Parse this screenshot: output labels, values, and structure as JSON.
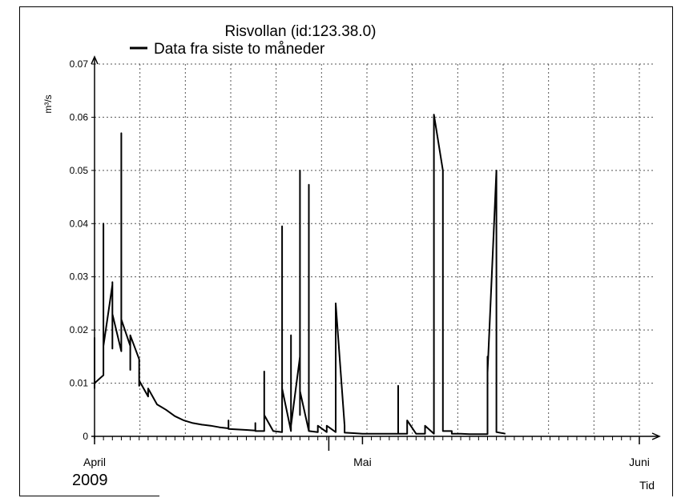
{
  "chart_data": {
    "type": "line",
    "title": "Risvollan (id:123.38.0)",
    "ylabel": "m³/s",
    "xlabel": "Tid",
    "year_label": "2009",
    "ylim": [
      0,
      0.07
    ],
    "y_ticks": [
      "0",
      "0.01",
      "0.02",
      "0.03",
      "0.04",
      "0.05",
      "0.06",
      "0.07"
    ],
    "x_range": [
      "2009-04-01",
      "2009-06-01"
    ],
    "month_ticks": [
      {
        "label": "April",
        "date": "2009-04-01"
      },
      {
        "label": "Mai",
        "date": "2009-05-01"
      },
      {
        "label": "Juni",
        "date": "2009-06-01"
      }
    ],
    "grid": true,
    "legend_position": "top-left",
    "series": [
      {
        "name": "Data fra siste to måneder",
        "color": "#000000",
        "points": [
          [
            "2009-04-01",
            0.009
          ],
          [
            "2009-04-01",
            0.0185
          ],
          [
            "2009-04-01",
            0.01
          ],
          [
            "2009-04-02",
            0.0115
          ],
          [
            "2009-04-02",
            0.028
          ],
          [
            "2009-04-02",
            0.04
          ],
          [
            "2009-04-02",
            0.0275
          ],
          [
            "2009-04-02",
            0.017
          ],
          [
            "2009-04-03",
            0.0285
          ],
          [
            "2009-04-03",
            0.029
          ],
          [
            "2009-04-03",
            0.0165
          ],
          [
            "2009-04-03",
            0.023
          ],
          [
            "2009-04-04",
            0.016
          ],
          [
            "2009-04-04",
            0.028
          ],
          [
            "2009-04-04",
            0.057
          ],
          [
            "2009-04-04",
            0.022
          ],
          [
            "2009-04-05",
            0.017
          ],
          [
            "2009-04-05",
            0.0125
          ],
          [
            "2009-04-05",
            0.019
          ],
          [
            "2009-04-06",
            0.0145
          ],
          [
            "2009-04-06",
            0.0095
          ],
          [
            "2009-04-06",
            0.0105
          ],
          [
            "2009-04-07",
            0.0075
          ],
          [
            "2009-04-07",
            0.009
          ],
          [
            "2009-04-08",
            0.006
          ],
          [
            "2009-04-09",
            0.005
          ],
          [
            "2009-04-10",
            0.0038
          ],
          [
            "2009-04-11",
            0.003
          ],
          [
            "2009-04-12",
            0.0025
          ],
          [
            "2009-04-13",
            0.0022
          ],
          [
            "2009-04-14",
            0.002
          ],
          [
            "2009-04-15",
            0.0017
          ],
          [
            "2009-04-16",
            0.0015
          ],
          [
            "2009-04-16",
            0.003
          ],
          [
            "2009-04-16",
            0.0014
          ],
          [
            "2009-04-18",
            0.0012
          ],
          [
            "2009-04-19",
            0.0011
          ],
          [
            "2009-04-19",
            0.0025
          ],
          [
            "2009-04-19",
            0.001
          ],
          [
            "2009-04-20",
            0.001
          ],
          [
            "2009-04-20",
            0.0122
          ],
          [
            "2009-04-20",
            0.004
          ],
          [
            "2009-04-21",
            0.001
          ],
          [
            "2009-04-22",
            0.0008
          ],
          [
            "2009-04-22",
            0.0395
          ],
          [
            "2009-04-22",
            0.009
          ],
          [
            "2009-04-23",
            0.001
          ],
          [
            "2009-04-23",
            0.019
          ],
          [
            "2009-04-23",
            0.0175
          ],
          [
            "2009-04-23",
            0.002
          ],
          [
            "2009-04-24",
            0.015
          ],
          [
            "2009-04-24",
            0.0135
          ],
          [
            "2009-04-24",
            0.05
          ],
          [
            "2009-04-24",
            0.004
          ],
          [
            "2009-04-24",
            0.0085
          ],
          [
            "2009-04-25",
            0.001
          ],
          [
            "2009-04-25",
            0.0473
          ],
          [
            "2009-04-25",
            0.001
          ],
          [
            "2009-04-26",
            0.0008
          ],
          [
            "2009-04-26",
            0.002
          ],
          [
            "2009-04-27",
            0.0008
          ],
          [
            "2009-04-27",
            0.002
          ],
          [
            "2009-04-28",
            0.0008
          ],
          [
            "2009-04-28",
            0.022
          ],
          [
            "2009-04-28",
            0.0045
          ],
          [
            "2009-04-28",
            0.015
          ],
          [
            "2009-04-28",
            0.025
          ],
          [
            "2009-04-29",
            0.002
          ],
          [
            "2009-04-29",
            0.0007
          ],
          [
            "2009-04-30",
            0.0006
          ],
          [
            "2009-05-01",
            0.0005
          ],
          [
            "2009-05-02",
            0.0005
          ],
          [
            "2009-05-03",
            0.0005
          ],
          [
            "2009-05-04",
            0.0005
          ],
          [
            "2009-05-05",
            0.0005
          ],
          [
            "2009-05-05",
            0.0095
          ],
          [
            "2009-05-05",
            0.0005
          ],
          [
            "2009-05-06",
            0.0005
          ],
          [
            "2009-05-06",
            0.003
          ],
          [
            "2009-05-07",
            0.0005
          ],
          [
            "2009-05-08",
            0.0005
          ],
          [
            "2009-05-08",
            0.002
          ],
          [
            "2009-05-09",
            0.0005
          ],
          [
            "2009-05-09",
            0.003
          ],
          [
            "2009-05-09",
            0.0175
          ],
          [
            "2009-05-09",
            0.0605
          ],
          [
            "2009-05-10",
            0.05
          ],
          [
            "2009-05-10",
            0.013
          ],
          [
            "2009-05-10",
            0.021
          ],
          [
            "2009-05-10",
            0.001
          ],
          [
            "2009-05-11",
            0.001
          ],
          [
            "2009-05-11",
            0.0005
          ],
          [
            "2009-05-12",
            0.0005
          ],
          [
            "2009-05-13",
            0.0004
          ],
          [
            "2009-05-14",
            0.0004
          ],
          [
            "2009-05-15",
            0.0004
          ],
          [
            "2009-05-15",
            0.015
          ],
          [
            "2009-05-15",
            0.012
          ],
          [
            "2009-05-16",
            0.05
          ],
          [
            "2009-05-16",
            0.018
          ],
          [
            "2009-05-16",
            0.0105
          ],
          [
            "2009-05-16",
            0.0008
          ],
          [
            "2009-05-17",
            0.0005
          ]
        ]
      }
    ]
  }
}
